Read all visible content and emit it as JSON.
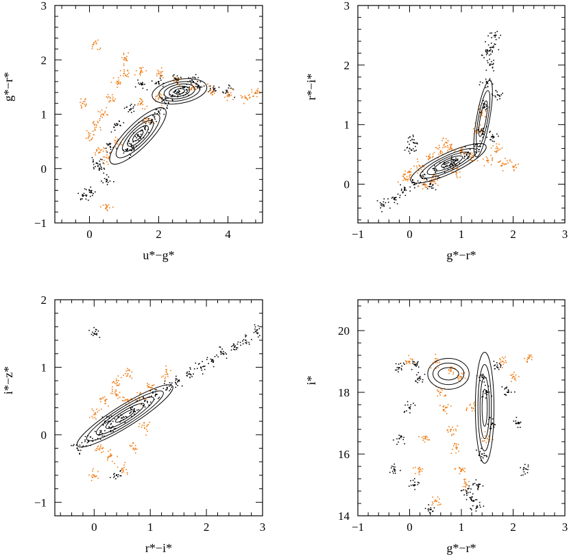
{
  "figure": {
    "background": "#ffffff",
    "colors": {
      "star": "#000000",
      "quasar": "#f07a12"
    }
  },
  "chart_data": [
    {
      "panel": "top-left",
      "type": "scatter",
      "xlabel": "u*−g*",
      "ylabel": "g*−r*",
      "xlim": [
        -1,
        5
      ],
      "ylim": [
        -1,
        3
      ],
      "xticks": [
        0,
        2,
        4
      ],
      "xtick_labels": [
        "0",
        "2",
        "4"
      ],
      "yticks": [
        -1,
        0,
        1,
        2,
        3
      ],
      "ytick_labels": [
        "−1",
        "0",
        "1",
        "2",
        "3"
      ],
      "grid": false,
      "series": [
        {
          "color": "#000000",
          "marker": "dots",
          "points": [
            [
              1.1,
              0.35
            ],
            [
              1.2,
              0.45
            ],
            [
              1.4,
              0.6
            ],
            [
              1.6,
              0.75
            ],
            [
              1.8,
              0.9
            ],
            [
              2.0,
              1.05
            ],
            [
              2.2,
              1.2
            ],
            [
              2.4,
              1.35
            ],
            [
              2.6,
              1.42
            ],
            [
              2.8,
              1.45
            ],
            [
              3.2,
              1.5
            ],
            [
              3.6,
              1.45
            ],
            [
              4.0,
              1.4
            ],
            [
              0.2,
              0.1
            ],
            [
              0.3,
              0.0
            ],
            [
              0.5,
              -0.2
            ],
            [
              0.0,
              -0.4
            ],
            [
              -0.2,
              -0.5
            ],
            [
              1.5,
              1.55
            ],
            [
              2.0,
              1.6
            ],
            [
              2.5,
              1.65
            ],
            [
              3.0,
              1.6
            ],
            [
              1.2,
              1.1
            ],
            [
              0.8,
              0.8
            ],
            [
              0.6,
              0.4
            ]
          ]
        },
        {
          "color": "#f07a12",
          "marker": "dots",
          "points": [
            [
              0.0,
              0.6
            ],
            [
              0.2,
              0.8
            ],
            [
              0.4,
              1.0
            ],
            [
              0.6,
              1.3
            ],
            [
              0.8,
              1.6
            ],
            [
              1.0,
              1.75
            ],
            [
              1.5,
              1.8
            ],
            [
              2.0,
              1.75
            ],
            [
              2.5,
              1.6
            ],
            [
              3.0,
              1.5
            ],
            [
              3.5,
              1.45
            ],
            [
              4.0,
              1.35
            ],
            [
              4.5,
              1.3
            ],
            [
              0.3,
              0.3
            ],
            [
              0.5,
              0.2
            ],
            [
              0.8,
              0.5
            ],
            [
              1.5,
              1.2
            ],
            [
              2.0,
              1.3
            ],
            [
              1.0,
              2.0
            ],
            [
              -0.2,
              1.2
            ],
            [
              0.2,
              2.3
            ],
            [
              0.5,
              -0.7
            ],
            [
              4.8,
              1.4
            ],
            [
              1.7,
              0.9
            ]
          ]
        }
      ],
      "contours": [
        {
          "cx": 2.6,
          "cy": 1.42,
          "rx": [
            0.15,
            0.3,
            0.45,
            0.6,
            0.8
          ],
          "ry": [
            0.05,
            0.09,
            0.13,
            0.17,
            0.22
          ],
          "angle": 10
        },
        {
          "cx": 1.4,
          "cy": 0.6,
          "rx": [
            0.2,
            0.4,
            0.6,
            0.85,
            1.1
          ],
          "ry": [
            0.05,
            0.09,
            0.13,
            0.17,
            0.22
          ],
          "angle": 45
        }
      ]
    },
    {
      "panel": "top-right",
      "type": "scatter",
      "xlabel": "g*−r*",
      "ylabel": "r*−i*",
      "xlim": [
        -1,
        3
      ],
      "ylim": [
        -0.65,
        3
      ],
      "xticks": [
        -1,
        0,
        1,
        2,
        3
      ],
      "xtick_labels": [
        "−1",
        "0",
        "1",
        "2",
        "3"
      ],
      "yticks": [
        0,
        1,
        2,
        3
      ],
      "ytick_labels": [
        "0",
        "1",
        "2",
        "3"
      ],
      "grid": false,
      "series": [
        {
          "color": "#000000",
          "marker": "dots",
          "points": [
            [
              -0.5,
              -0.35
            ],
            [
              -0.3,
              -0.25
            ],
            [
              -0.1,
              -0.1
            ],
            [
              0.1,
              0.0
            ],
            [
              0.3,
              0.1
            ],
            [
              0.5,
              0.2
            ],
            [
              0.7,
              0.3
            ],
            [
              0.9,
              0.4
            ],
            [
              1.1,
              0.5
            ],
            [
              1.3,
              0.6
            ],
            [
              1.4,
              0.9
            ],
            [
              1.45,
              1.3
            ],
            [
              1.5,
              1.7
            ],
            [
              1.55,
              2.0
            ],
            [
              1.6,
              2.3
            ],
            [
              1.65,
              2.5
            ],
            [
              1.5,
              2.2
            ],
            [
              0.0,
              0.6
            ],
            [
              0.05,
              0.75
            ],
            [
              0.4,
              0.0
            ],
            [
              0.8,
              0.35
            ],
            [
              1.6,
              0.8
            ],
            [
              1.7,
              1.5
            ]
          ]
        },
        {
          "color": "#f07a12",
          "marker": "dots",
          "points": [
            [
              0.0,
              0.2
            ],
            [
              0.2,
              0.3
            ],
            [
              0.4,
              0.45
            ],
            [
              0.6,
              0.55
            ],
            [
              0.8,
              0.6
            ],
            [
              1.0,
              0.55
            ],
            [
              1.2,
              0.45
            ],
            [
              1.5,
              0.4
            ],
            [
              1.8,
              0.35
            ],
            [
              2.0,
              0.3
            ],
            [
              0.3,
              0.0
            ],
            [
              0.5,
              0.1
            ],
            [
              1.3,
              0.9
            ],
            [
              1.4,
              1.2
            ],
            [
              0.9,
              0.2
            ],
            [
              1.7,
              0.6
            ],
            [
              -0.1,
              0.1
            ],
            [
              0.7,
              0.7
            ]
          ]
        }
      ],
      "contours": [
        {
          "cx": 0.75,
          "cy": 0.35,
          "rx": [
            0.15,
            0.3,
            0.45,
            0.6,
            0.8
          ],
          "ry": [
            0.04,
            0.07,
            0.1,
            0.13,
            0.17
          ],
          "angle": 25
        },
        {
          "cx": 1.42,
          "cy": 1.1,
          "rx": [
            0.35,
            0.55,
            0.75
          ],
          "ry": [
            0.05,
            0.08,
            0.11
          ],
          "angle": 80
        }
      ]
    },
    {
      "panel": "bottom-left",
      "type": "scatter",
      "xlabel": "r*−i*",
      "ylabel": "i*−z*",
      "xlim": [
        -0.7,
        3
      ],
      "ylim": [
        -1.2,
        2
      ],
      "xticks": [
        0,
        1,
        2,
        3
      ],
      "xtick_labels": [
        "0",
        "1",
        "2",
        "3"
      ],
      "yticks": [
        -1,
        0,
        1,
        2
      ],
      "ytick_labels": [
        "−1",
        "0",
        "1",
        "2"
      ],
      "grid": false,
      "series": [
        {
          "color": "#000000",
          "marker": "dots",
          "points": [
            [
              -0.3,
              -0.2
            ],
            [
              -0.1,
              -0.1
            ],
            [
              0.1,
              0.0
            ],
            [
              0.3,
              0.1
            ],
            [
              0.5,
              0.25
            ],
            [
              0.7,
              0.35
            ],
            [
              0.9,
              0.5
            ],
            [
              1.1,
              0.6
            ],
            [
              1.3,
              0.7
            ],
            [
              1.5,
              0.8
            ],
            [
              1.7,
              0.9
            ],
            [
              1.9,
              1.0
            ],
            [
              2.1,
              1.1
            ],
            [
              2.3,
              1.2
            ],
            [
              2.5,
              1.3
            ],
            [
              2.7,
              1.4
            ],
            [
              2.9,
              1.55
            ],
            [
              0.0,
              1.5
            ],
            [
              0.4,
              -0.6
            ],
            [
              0.2,
              0.2
            ]
          ]
        },
        {
          "color": "#f07a12",
          "marker": "dots",
          "points": [
            [
              0.0,
              0.3
            ],
            [
              0.2,
              0.5
            ],
            [
              0.4,
              0.6
            ],
            [
              0.6,
              0.5
            ],
            [
              0.8,
              0.55
            ],
            [
              1.0,
              0.7
            ],
            [
              0.3,
              -0.3
            ],
            [
              0.5,
              -0.5
            ],
            [
              0.7,
              -0.2
            ],
            [
              0.1,
              -0.2
            ],
            [
              0.6,
              0.9
            ],
            [
              1.3,
              0.9
            ],
            [
              0.9,
              0.1
            ],
            [
              0.4,
              0.8
            ],
            [
              0.0,
              -0.6
            ]
          ]
        }
      ],
      "contours": [
        {
          "cx": 0.55,
          "cy": 0.28,
          "rx": [
            0.2,
            0.4,
            0.6,
            0.8,
            1.0
          ],
          "ry": [
            0.04,
            0.07,
            0.1,
            0.13,
            0.16
          ],
          "angle": 32
        }
      ]
    },
    {
      "panel": "bottom-right",
      "type": "scatter",
      "xlabel": "g*−r*",
      "ylabel": "i*",
      "xlim": [
        -1,
        3
      ],
      "ylim": [
        14,
        21
      ],
      "yreversed": false,
      "xticks": [
        -1,
        0,
        1,
        2,
        3
      ],
      "xtick_labels": [
        "−1",
        "0",
        "1",
        "2",
        "3"
      ],
      "yticks": [
        14,
        16,
        18,
        20
      ],
      "ytick_labels": [
        "14",
        "16",
        "18",
        "20"
      ],
      "grid": false,
      "series": [
        {
          "color": "#000000",
          "marker": "dots",
          "points": [
            [
              0.1,
              18.9
            ],
            [
              0.2,
              18.5
            ],
            [
              0.0,
              17.5
            ],
            [
              -0.2,
              16.5
            ],
            [
              -0.3,
              15.5
            ],
            [
              0.1,
              15.0
            ],
            [
              1.4,
              18.5
            ],
            [
              1.5,
              18.0
            ],
            [
              1.6,
              17.0
            ],
            [
              1.4,
              16.0
            ],
            [
              1.3,
              15.0
            ],
            [
              1.2,
              14.5
            ],
            [
              1.7,
              18.8
            ],
            [
              1.9,
              18.0
            ],
            [
              2.1,
              17.0
            ],
            [
              1.1,
              14.8
            ],
            [
              1.3,
              14.3
            ],
            [
              0.4,
              14.2
            ],
            [
              -0.2,
              18.8
            ],
            [
              2.2,
              15.5
            ]
          ]
        },
        {
          "color": "#f07a12",
          "marker": "dots",
          "points": [
            [
              0.5,
              19.0
            ],
            [
              0.8,
              18.7
            ],
            [
              1.0,
              18.5
            ],
            [
              0.6,
              18.0
            ],
            [
              0.7,
              17.5
            ],
            [
              0.8,
              16.8
            ],
            [
              0.9,
              16.2
            ],
            [
              1.0,
              15.5
            ],
            [
              1.1,
              15.0
            ],
            [
              0.3,
              16.5
            ],
            [
              0.2,
              15.5
            ],
            [
              0.5,
              14.5
            ],
            [
              1.8,
              19.0
            ],
            [
              2.0,
              18.5
            ],
            [
              2.3,
              19.1
            ],
            [
              0.0,
              19.0
            ],
            [
              1.2,
              17.5
            ],
            [
              1.5,
              16.5
            ]
          ]
        }
      ],
      "contours": [
        {
          "cx": 1.45,
          "cy": 17.5,
          "rx": [
            0.05,
            0.09,
            0.13,
            0.18
          ],
          "ry": [
            0.6,
            1.0,
            1.4,
            1.8
          ],
          "angle": 0
        },
        {
          "cx": 0.75,
          "cy": 18.6,
          "rx": [
            0.2,
            0.3,
            0.4
          ],
          "ry": [
            0.2,
            0.35,
            0.5
          ],
          "angle": 0
        }
      ]
    }
  ]
}
